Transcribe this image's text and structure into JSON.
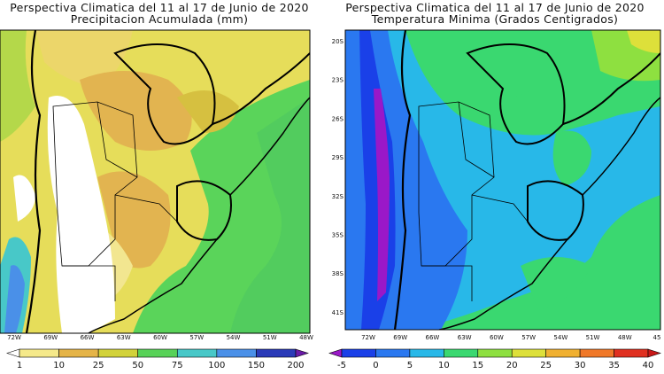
{
  "left_map": {
    "title_line1": "Perspectiva Climatica del 11 al 17 de Junio de 2020",
    "title_line2": "Precipitacion Acumulada (mm)",
    "x_ticks": [
      "72W",
      "69W",
      "66W",
      "63W",
      "60W",
      "57W",
      "54W",
      "51W",
      "48W"
    ],
    "colorbar": {
      "labels": [
        "1",
        "10",
        "25",
        "50",
        "75",
        "100",
        "150",
        "200"
      ],
      "colors": [
        "#ffffff",
        "#f5e98a",
        "#e5b448",
        "#d2d23a",
        "#58d258",
        "#48c8c8",
        "#4a90e8",
        "#2a3ab8",
        "#6a1aa8"
      ]
    }
  },
  "right_map": {
    "title_line1": "Perspectiva Climatica del 11 al 17 de Junio de 2020",
    "title_line2": "Temperatura Minima (Grados Centigrados)",
    "x_ticks": [
      "72W",
      "69W",
      "66W",
      "63W",
      "60W",
      "57W",
      "54W",
      "51W",
      "48W",
      "45"
    ],
    "y_ticks": [
      "20S",
      "23S",
      "26S",
      "29S",
      "32S",
      "35S",
      "38S",
      "41S"
    ],
    "colorbar": {
      "labels": [
        "-5",
        "0",
        "5",
        "10",
        "15",
        "20",
        "25",
        "30",
        "35",
        "40"
      ],
      "colors": [
        "#9a18c8",
        "#1a40e8",
        "#2a78f0",
        "#28b8e8",
        "#3ad870",
        "#8ee040",
        "#dde03a",
        "#f0b030",
        "#f07828",
        "#e03020",
        "#c81818"
      ]
    }
  }
}
